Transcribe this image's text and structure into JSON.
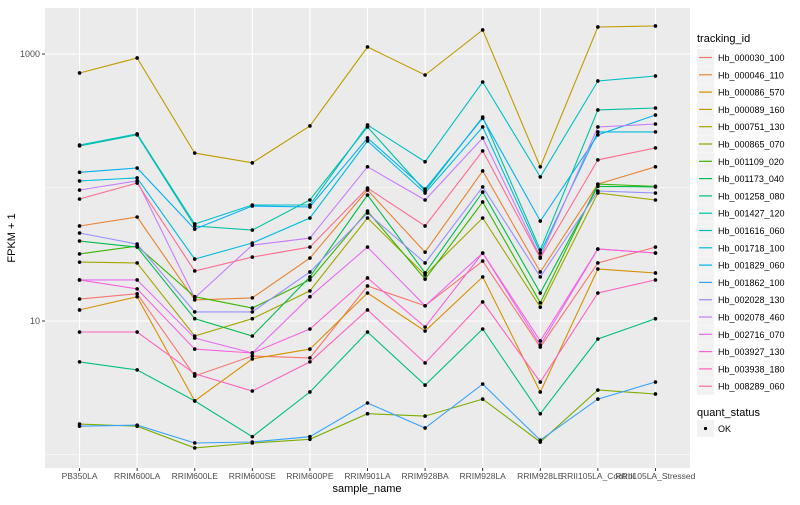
{
  "chart_data": {
    "type": "line",
    "xlabel": "sample_name",
    "ylabel": "FPKM + 1",
    "y_scale": "log10",
    "ylim": [
      0.9,
      2300
    ],
    "y_ticks": [
      10,
      1000
    ],
    "y_tick_labels": [
      "10",
      "1000"
    ],
    "grid": true,
    "legend_position": "right",
    "categories": [
      "PB350LA",
      "RRIM600LA",
      "RRIM600LE",
      "RRIM600SE",
      "RRIM600PE",
      "RRIM901LA",
      "RRIM928BA",
      "RRIM928LA",
      "RRIM928LE",
      "RRII105LA_Control",
      "RRII105LA_Stressed"
    ],
    "legend_title": "tracking_id",
    "series": [
      {
        "name": "Hb_000030_100",
        "color": "#F8766D",
        "values": [
          14.6,
          16.0,
          3.87,
          5.47,
          5.29,
          18.3,
          13.0,
          28.1,
          6.38,
          27.2,
          35.8
        ]
      },
      {
        "name": "Hb_000046_110",
        "color": "#EA8331",
        "values": [
          51.5,
          60.1,
          14.4,
          14.9,
          29.6,
          95.7,
          32.8,
          133,
          23.3,
          106,
          143
        ]
      },
      {
        "name": "Hb_000086_570",
        "color": "#D89000",
        "values": [
          12.1,
          15.2,
          2.52,
          5.2,
          6.16,
          16.2,
          8.41,
          21.4,
          2.94,
          24.5,
          22.9
        ]
      },
      {
        "name": "Hb_000089_160",
        "color": "#C09B00",
        "values": [
          721,
          934,
          181,
          153,
          289,
          1129,
          696,
          1514,
          143,
          1594,
          1622
        ]
      },
      {
        "name": "Hb_000751_130",
        "color": "#A3A500",
        "values": [
          27.6,
          27.2,
          7.72,
          10.4,
          16.8,
          59.1,
          22.1,
          59.1,
          12.7,
          90.9,
          80.6
        ]
      },
      {
        "name": "Hb_000865_070",
        "color": "#7CAE00",
        "values": [
          1.69,
          1.63,
          1.12,
          1.22,
          1.3,
          2.02,
          1.94,
          2.6,
          1.24,
          3.04,
          2.84
        ]
      },
      {
        "name": "Hb_001109_020",
        "color": "#39B600",
        "values": [
          31.8,
          36.4,
          15.2,
          12.5,
          20.3,
          66.6,
          20.6,
          77.9,
          13.7,
          106,
          102
        ]
      },
      {
        "name": "Hb_001173_040",
        "color": "#00BB4E",
        "values": [
          39.7,
          35.8,
          10.4,
          7.72,
          21.4,
          87.8,
          22.9,
          92.4,
          16.2,
          102,
          101
        ]
      },
      {
        "name": "Hb_001258_080",
        "color": "#00BF7D",
        "values": [
          4.94,
          4.3,
          2.52,
          1.36,
          2.94,
          8.27,
          3.31,
          8.71,
          2.02,
          7.33,
          10.4
        ]
      },
      {
        "name": "Hb_001427_120",
        "color": "#00C1A3",
        "values": [
          205,
          248,
          51.5,
          48.0,
          80.6,
          284,
          94.1,
          337,
          34.0,
          381,
          394
        ]
      },
      {
        "name": "Hb_001616_060",
        "color": "#00BFC4",
        "values": [
          208,
          252,
          53.3,
          73.9,
          73.9,
          294,
          156,
          617,
          120,
          628,
          684
        ]
      },
      {
        "name": "Hb_001718_100",
        "color": "#00BAE0",
        "values": [
          112,
          118,
          29.1,
          38.4,
          59.1,
          223,
          90.9,
          284,
          32.3,
          261,
          261
        ]
      },
      {
        "name": "Hb_001829_060",
        "color": "#00B0F6",
        "values": [
          130,
          140,
          48.8,
          72.7,
          71.4,
          235,
          97.3,
          331,
          56.1,
          248,
          349
        ]
      },
      {
        "name": "Hb_001862_100",
        "color": "#35A2FF",
        "values": [
          1.63,
          1.66,
          1.22,
          1.24,
          1.36,
          2.43,
          1.58,
          3.37,
          1.28,
          2.6,
          3.49
        ]
      },
      {
        "name": "Hb_002028_130",
        "color": "#9590FF",
        "values": [
          45.6,
          37.7,
          11.7,
          11.7,
          23.3,
          64.4,
          27.2,
          101,
          21.4,
          94.1,
          90.9
        ]
      },
      {
        "name": "Hb_002078_460",
        "color": "#C77CFF",
        "values": [
          95.7,
          112,
          14.9,
          37.0,
          41.8,
          143,
          80.6,
          235,
          30.1,
          284,
          299
        ]
      },
      {
        "name": "Hb_002716_070",
        "color": "#E76BF3",
        "values": [
          20.3,
          20.3,
          7.46,
          5.76,
          15.2,
          35.8,
          13.0,
          32.3,
          6.61,
          34.6,
          32.3
        ]
      },
      {
        "name": "Hb_003927_130",
        "color": "#FA62DB",
        "values": [
          20.3,
          17.4,
          6.16,
          5.76,
          8.71,
          21.0,
          9.01,
          32.3,
          7.09,
          34.6,
          32.3
        ]
      },
      {
        "name": "Hb_003938_180",
        "color": "#FF62BC",
        "values": [
          8.27,
          8.27,
          4.02,
          2.99,
          4.94,
          12.1,
          4.85,
          13.9,
          3.49,
          16.2,
          20.3
        ]
      },
      {
        "name": "Hb_008289_060",
        "color": "#FF6C91",
        "values": [
          82.0,
          108,
          23.7,
          30.1,
          35.8,
          99.0,
          51.5,
          188,
          29.6,
          161,
          198
        ]
      }
    ],
    "point_legend": {
      "title": "quant_status",
      "entries": [
        "OK"
      ]
    }
  },
  "colors": {
    "panel": "#EBEBEB",
    "grid": "#FFFFFF",
    "point": "#000000",
    "axis_text": "#4D4D4D"
  }
}
